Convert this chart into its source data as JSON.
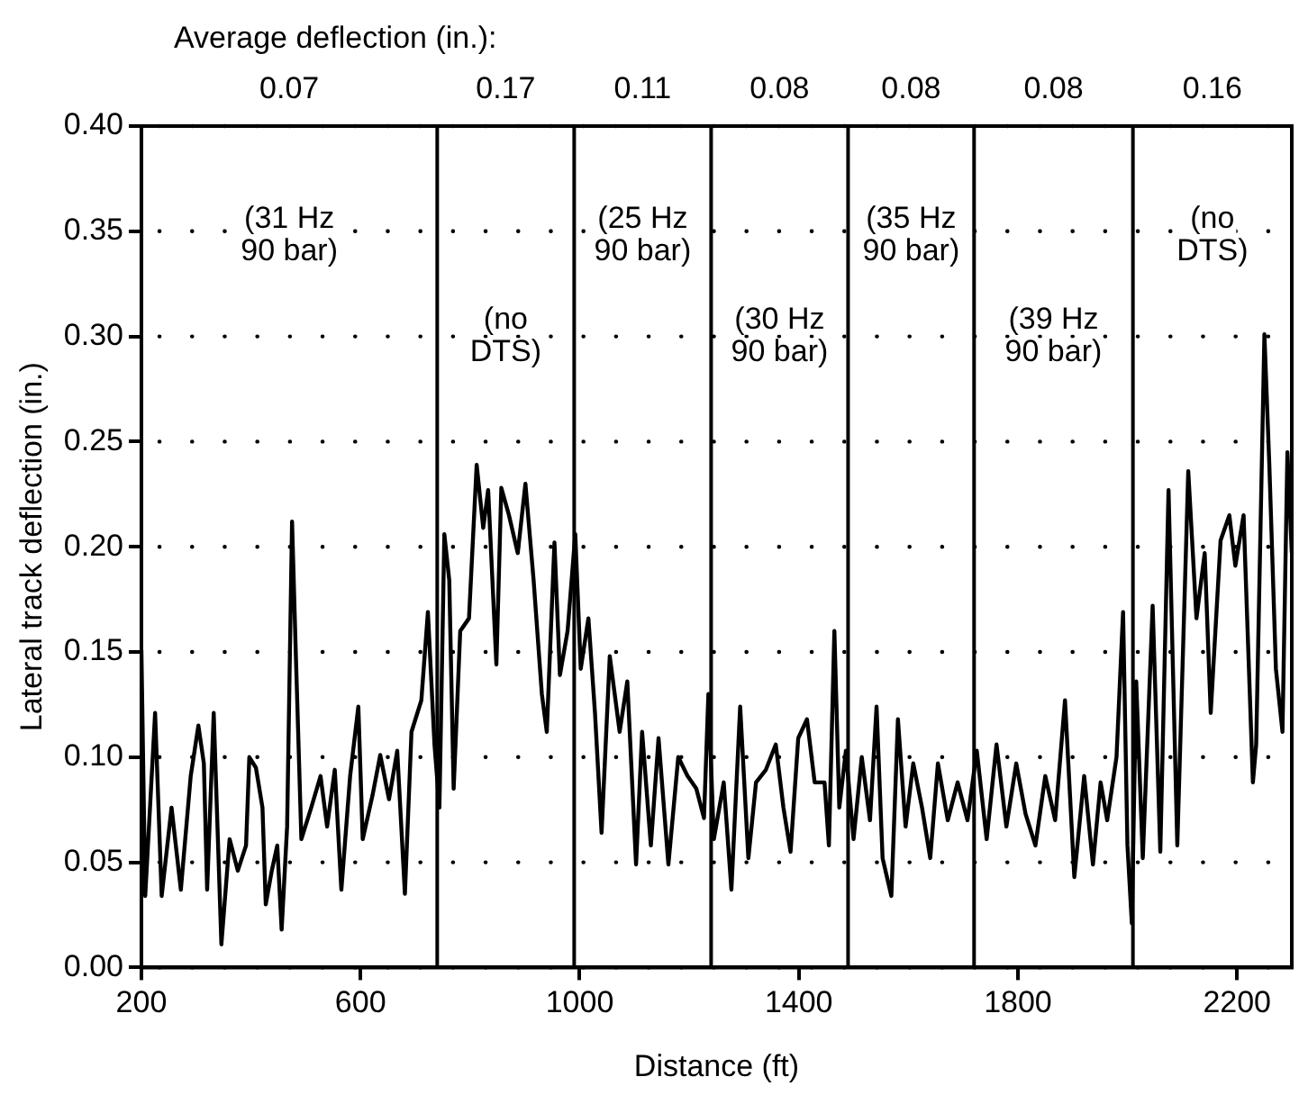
{
  "chart_data": {
    "type": "line",
    "title": "Average deflection (in.):",
    "xlabel": "Distance (ft)",
    "ylabel": "Lateral track deflection (in.)",
    "xlim": [
      200,
      2300
    ],
    "xticks": [
      200,
      600,
      1000,
      1400,
      1800,
      2200
    ],
    "ylim": [
      0,
      0.4
    ],
    "yticks": [
      {
        "value": 0,
        "label": "0.00"
      },
      {
        "value": 0.05,
        "label": "0.05"
      },
      {
        "value": 0.1,
        "label": "0.10"
      },
      {
        "value": 0.15,
        "label": "0.15"
      },
      {
        "value": 0.2,
        "label": "0.20"
      },
      {
        "value": 0.25,
        "label": "0.25"
      },
      {
        "value": 0.3,
        "label": "0.30"
      },
      {
        "value": 0.35,
        "label": "0.35"
      },
      {
        "value": 0.4,
        "label": "0.40"
      }
    ],
    "grid": "y",
    "legend": false,
    "marker": "none",
    "line_style": "solid",
    "series": [
      {
        "color": "#000000",
        "x": [
          200,
          207,
          225,
          237,
          255,
          272,
          290,
          304,
          314,
          320,
          332,
          346,
          361,
          376,
          391,
          397,
          409,
          421,
          427,
          438,
          448,
          456,
          466,
          475,
          482,
          492,
          510,
          527,
          539,
          553,
          565,
          581,
          596,
          604,
          622,
          636,
          652,
          667,
          681,
          693,
          711,
          723,
          735,
          744,
          753,
          762,
          770,
          782,
          798,
          812,
          824,
          833,
          848,
          857,
          871,
          887,
          901,
          916,
          931,
          940,
          954,
          964,
          978,
          992,
          1002,
          1016,
          1028,
          1040,
          1055,
          1073,
          1087,
          1103,
          1114,
          1130,
          1144,
          1162,
          1180,
          1197,
          1213,
          1227,
          1235,
          1245,
          1263,
          1277,
          1293,
          1308,
          1322,
          1340,
          1358,
          1372,
          1385,
          1399,
          1415,
          1429,
          1447,
          1455,
          1465,
          1474,
          1486,
          1500,
          1515,
          1530,
          1542,
          1553,
          1569,
          1581,
          1595,
          1609,
          1625,
          1640,
          1654,
          1672,
          1690,
          1708,
          1725,
          1743,
          1761,
          1779,
          1797,
          1814,
          1832,
          1850,
          1868,
          1886,
          1903,
          1921,
          1937,
          1951,
          1963,
          1980,
          1992,
          2000,
          2008,
          2016,
          2028,
          2046,
          2060,
          2075,
          2091,
          2111,
          2126,
          2141,
          2152,
          2170,
          2186,
          2197,
          2212,
          2229,
          2235,
          2250,
          2259,
          2271,
          2283,
          2292,
          2300
        ],
        "values": [
          0.151,
          0.034,
          0.121,
          0.034,
          0.076,
          0.037,
          0.091,
          0.115,
          0.097,
          0.037,
          0.121,
          0.011,
          0.061,
          0.046,
          0.058,
          0.1,
          0.095,
          0.076,
          0.03,
          0.046,
          0.058,
          0.018,
          0.067,
          0.212,
          0.148,
          0.061,
          0.076,
          0.091,
          0.067,
          0.094,
          0.037,
          0.091,
          0.124,
          0.061,
          0.082,
          0.101,
          0.08,
          0.103,
          0.035,
          0.112,
          0.127,
          0.169,
          0.106,
          0.076,
          0.206,
          0.184,
          0.085,
          0.16,
          0.166,
          0.239,
          0.209,
          0.227,
          0.144,
          0.228,
          0.215,
          0.197,
          0.23,
          0.184,
          0.13,
          0.112,
          0.202,
          0.139,
          0.16,
          0.206,
          0.142,
          0.166,
          0.121,
          0.064,
          0.148,
          0.112,
          0.136,
          0.049,
          0.112,
          0.058,
          0.109,
          0.049,
          0.1,
          0.091,
          0.085,
          0.071,
          0.13,
          0.061,
          0.088,
          0.037,
          0.124,
          0.052,
          0.088,
          0.094,
          0.106,
          0.076,
          0.055,
          0.109,
          0.118,
          0.088,
          0.088,
          0.058,
          0.16,
          0.076,
          0.103,
          0.061,
          0.1,
          0.07,
          0.124,
          0.052,
          0.034,
          0.118,
          0.067,
          0.097,
          0.076,
          0.052,
          0.097,
          0.07,
          0.088,
          0.07,
          0.103,
          0.061,
          0.106,
          0.067,
          0.097,
          0.073,
          0.058,
          0.091,
          0.07,
          0.127,
          0.043,
          0.091,
          0.049,
          0.088,
          0.07,
          0.1,
          0.169,
          0.058,
          0.021,
          0.136,
          0.052,
          0.172,
          0.055,
          0.227,
          0.058,
          0.236,
          0.166,
          0.197,
          0.121,
          0.203,
          0.215,
          0.191,
          0.215,
          0.088,
          0.106,
          0.301,
          0.239,
          0.142,
          0.112,
          0.245,
          0.197
        ]
      }
    ],
    "ref_lines": [
      {
        "axis": "x",
        "value": 740,
        "color": "#000000"
      },
      {
        "axis": "x",
        "value": 990,
        "color": "#000000"
      },
      {
        "axis": "x",
        "value": 1240,
        "color": "#000000"
      },
      {
        "axis": "x",
        "value": 1490,
        "color": "#000000"
      },
      {
        "axis": "x",
        "value": 1720,
        "color": "#000000"
      },
      {
        "axis": "x",
        "value": 2010,
        "color": "#000000"
      }
    ],
    "annotations": [
      "0.07",
      "0.17",
      "0.11",
      "0.08",
      "0.08",
      "0.08",
      "0.16",
      "(31 Hz\n90 bar)",
      "(no\nDTS)",
      "(25 Hz\n90 bar)",
      "(30 Hz\n90 bar)",
      "(35 Hz\n90 bar)",
      "(39 Hz\n90 bar)",
      "(no\nDTS)"
    ]
  }
}
